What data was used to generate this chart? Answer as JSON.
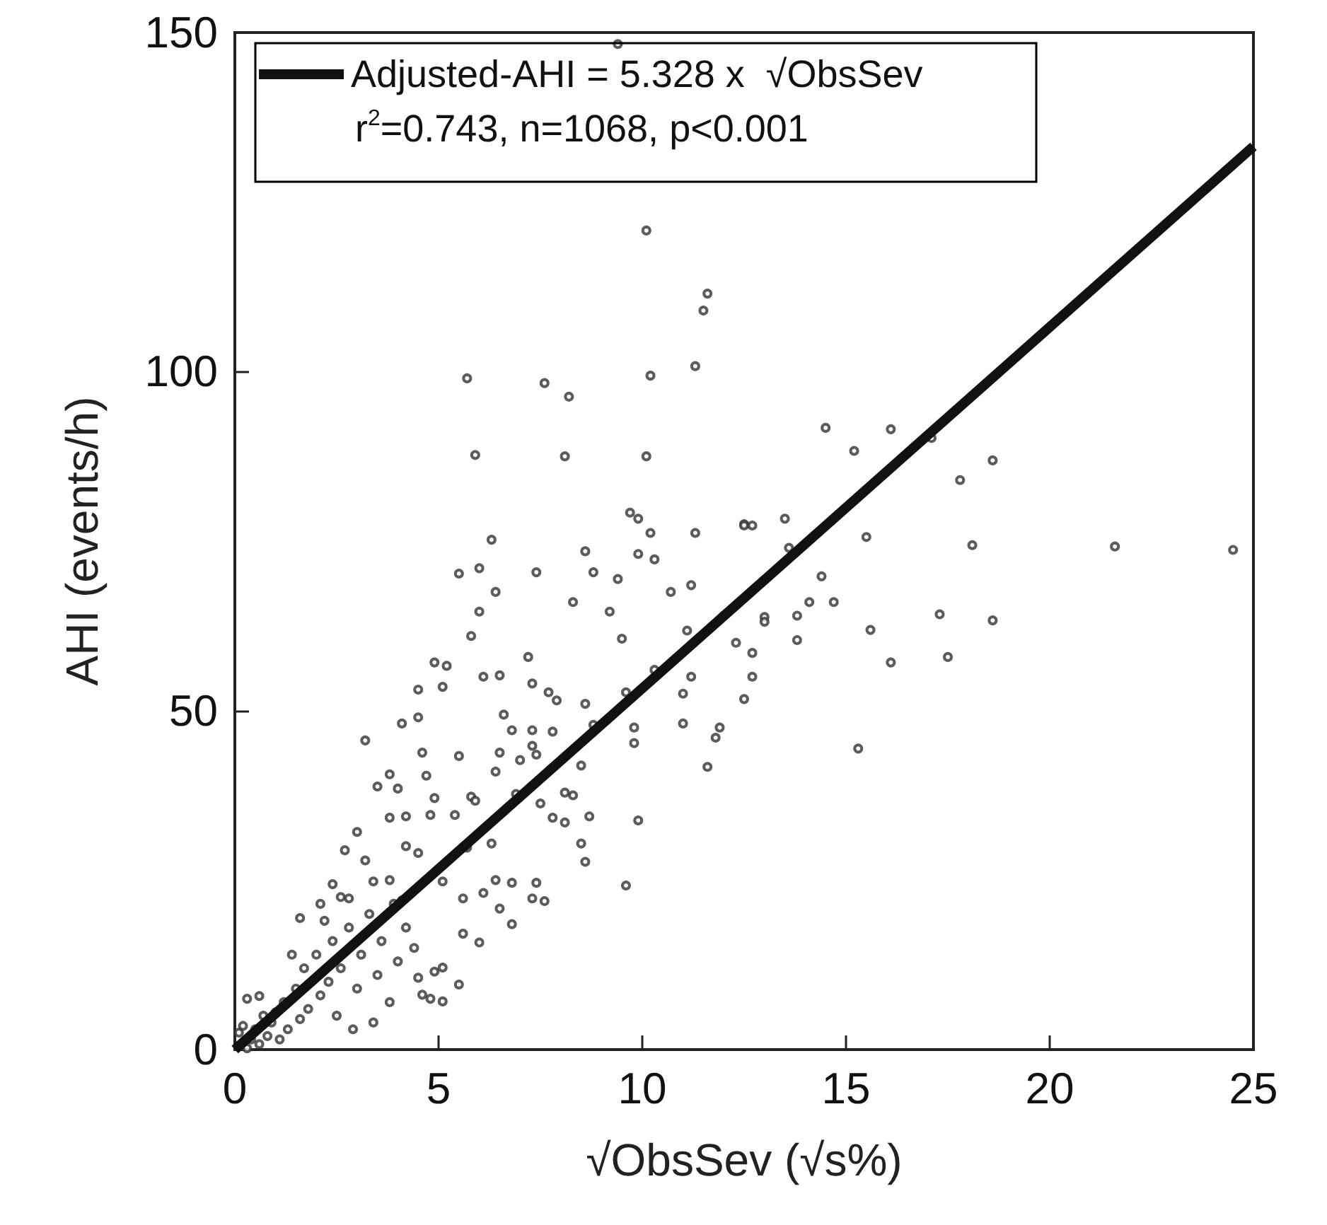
{
  "chart_data": {
    "type": "scatter",
    "xlabel": "√ObsSev (√s%)",
    "ylabel": "AHI (events/h)",
    "xlim": [
      0,
      25
    ],
    "xticks": [
      0,
      5,
      10,
      15,
      20,
      25
    ],
    "ylim": [
      0,
      150
    ],
    "yticks": [
      0,
      50,
      100,
      150
    ],
    "grid": false,
    "legend": "top left",
    "marker": "circle",
    "annotations": [
      "r$^{2}$=0.743, n=1068, p<0.001"
    ],
    "series": [
      {
        "color": "#333333",
        "x": [
          9.4,
          10.1,
          11.6,
          11.5,
          11.3,
          10.2,
          5.7,
          7.6,
          8.2,
          14.5,
          16.1,
          17.1,
          15.2,
          5.9,
          8.1,
          10.1,
          9.7,
          9.9,
          10.2,
          11.3,
          12.5,
          6.3,
          8.6,
          9.9,
          10.3,
          5.5,
          6.0,
          8.8,
          9.4,
          7.4,
          6.4,
          10.7,
          11.2,
          6.0,
          8.3,
          9.2,
          5.8,
          9.5,
          11.1,
          12.0,
          12.3,
          4.9,
          5.2,
          7.2,
          10.3,
          6.1,
          6.5,
          7.3,
          7.7,
          7.9,
          8.6,
          9.6,
          11.0,
          11.2,
          12.5,
          4.5,
          5.1,
          3.2,
          4.1,
          4.5,
          6.6,
          6.8,
          7.3,
          7.8,
          8.8,
          9.8,
          9.8,
          11.0,
          11.9,
          11.8,
          11.6,
          4.6,
          5.5,
          7.3,
          7.4,
          6.5,
          6.4,
          7.0,
          8.5,
          3.8,
          3.5,
          4.9,
          4.0,
          4.7,
          5.8,
          5.9,
          6.9,
          8.1,
          8.3,
          7.5,
          3.8,
          4.2,
          4.8,
          5.4,
          7.8,
          8.1,
          8.7,
          9.9,
          3.0,
          2.7,
          4.2,
          4.5,
          6.3,
          8.5,
          8.6,
          5.7,
          2.4,
          3.2,
          3.4,
          3.8,
          5.1,
          6.4,
          6.8,
          7.4,
          9.6,
          2.6,
          2.8,
          6.1,
          7.3,
          7.6,
          6.5,
          5.6,
          1.6,
          2.1,
          3.9,
          6.8,
          5.6,
          6.0,
          4.5,
          4.9,
          5.1,
          5.5,
          4.6,
          4.8,
          5.1,
          0.6,
          18.6,
          17.8,
          12.5,
          12.7,
          13.5,
          13.6,
          15.5,
          18.1,
          21.6,
          24.5,
          14.4,
          14.1,
          14.7,
          13.8,
          13.0,
          13.0,
          17.3,
          18.6,
          15.6,
          13.8,
          12.7,
          17.5,
          16.1,
          12.7,
          15.3,
          0.1,
          0.2,
          0.3,
          0.4,
          0.5,
          0.6,
          0.8,
          0.9,
          1.0,
          1.1,
          1.2,
          1.3,
          1.5,
          1.6,
          1.7,
          1.8,
          2.0,
          2.1,
          2.3,
          2.4,
          2.5,
          2.6,
          2.8,
          3.0,
          3.1,
          3.3,
          3.5,
          3.6,
          3.8,
          4.0,
          4.2,
          0.3,
          0.7,
          1.4,
          2.2,
          2.9,
          3.4,
          4.4,
          4.1
        ],
        "values": [
          148.3,
          120.8,
          111.5,
          109,
          100.8,
          99.4,
          99.0,
          98.3,
          96.3,
          91.7,
          91.5,
          90.2,
          88.3,
          87.7,
          87.5,
          87.5,
          79.2,
          78.3,
          76.2,
          76.2,
          77.5,
          75.2,
          73.5,
          73.1,
          72.3,
          70.2,
          71.0,
          70.4,
          69.4,
          70.4,
          67.5,
          67.5,
          68.5,
          64.6,
          66.0,
          64.6,
          61.0,
          60.6,
          61.8,
          64.0,
          60.0,
          57.1,
          56.6,
          57.9,
          56.0,
          55.0,
          55.2,
          54.0,
          52.7,
          51.5,
          51.0,
          52.7,
          52.5,
          55.0,
          51.7,
          53.1,
          53.5,
          45.6,
          48.1,
          49.0,
          49.4,
          47.1,
          47.1,
          46.9,
          47.9,
          47.5,
          45.2,
          48.1,
          47.5,
          46.0,
          41.7,
          43.8,
          43.3,
          44.8,
          43.5,
          43.8,
          41.0,
          42.7,
          41.9,
          40.6,
          38.8,
          37.1,
          38.5,
          40.4,
          37.3,
          36.7,
          37.7,
          37.9,
          37.5,
          36.3,
          34.2,
          34.4,
          34.6,
          34.6,
          34.2,
          33.5,
          34.4,
          33.8,
          32.1,
          29.4,
          30.0,
          29.0,
          30.4,
          30.4,
          27.7,
          29.8,
          24.4,
          27.9,
          24.8,
          25.0,
          24.8,
          25.0,
          24.6,
          24.6,
          24.2,
          22.5,
          22.3,
          23.1,
          22.3,
          21.9,
          20.8,
          22.3,
          19.4,
          21.5,
          21.5,
          18.5,
          17.1,
          15.8,
          10.6,
          11.5,
          12.1,
          9.6,
          8.1,
          7.5,
          7.1,
          7.9,
          86.9,
          84.0,
          77.3,
          77.3,
          78.3,
          74.0,
          75.6,
          74.4,
          74.2,
          73.7,
          69.8,
          66.0,
          66.0,
          64.0,
          63.8,
          63.1,
          64.2,
          63.3,
          61.9,
          60.4,
          58.5,
          57.9,
          57.1,
          55.0,
          44.4,
          2.5,
          3.5,
          0.2,
          1.5,
          3,
          0.8,
          2,
          4,
          5.5,
          1.5,
          7,
          3,
          9,
          4.5,
          12,
          6,
          14,
          8,
          10,
          16,
          5,
          12,
          18,
          9,
          14,
          20,
          11,
          16,
          7,
          13,
          18,
          7.5,
          5,
          14,
          19,
          3,
          4,
          15,
          22
        ]
      },
      {
        "type": "line",
        "name": "Adjusted-AHI = 5.328 x  √ObsSev",
        "color": "#111111",
        "x": [
          0,
          25
        ],
        "values": [
          0,
          133.2
        ],
        "marker": "none",
        "line_style": "solid"
      }
    ]
  }
}
